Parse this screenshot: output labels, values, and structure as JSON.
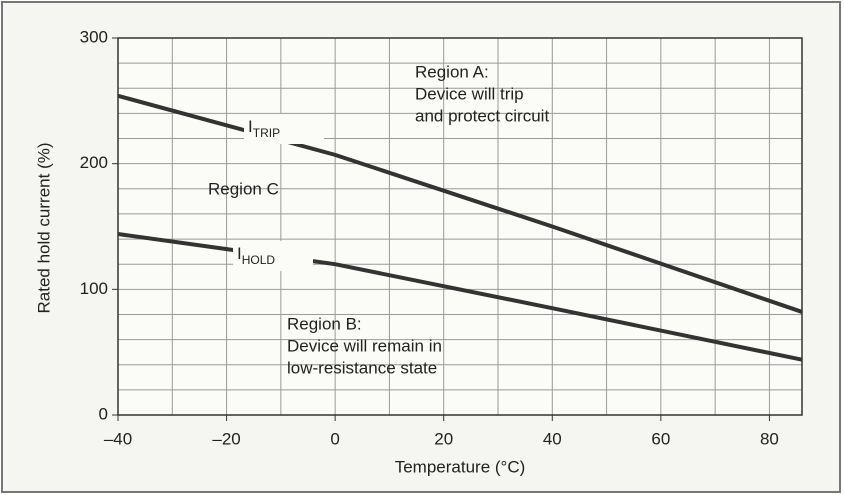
{
  "chart_data": {
    "type": "line",
    "xlabel": "Temperature (°C)",
    "ylabel": "Rated hold current (%)",
    "xlim": [
      -40,
      86
    ],
    "ylim": [
      0,
      300
    ],
    "xticks": [
      {
        "value": -40,
        "label": "–40"
      },
      {
        "value": -20,
        "label": "–20"
      },
      0,
      20,
      40,
      60,
      80
    ],
    "yticks": [
      0,
      100,
      200,
      300
    ],
    "xgrid": [
      -40,
      -30,
      -20,
      -10,
      0,
      10,
      20,
      30,
      40,
      50,
      60,
      70,
      80
    ],
    "ygrid": [
      0,
      20,
      40,
      60,
      80,
      100,
      120,
      140,
      160,
      180,
      200,
      220,
      240,
      260,
      280,
      300
    ],
    "grid": true,
    "series": [
      {
        "name": "I",
        "name_sub": "TRIP",
        "color": "#333333",
        "x": [
          -40,
          0,
          40,
          86
        ],
        "values": [
          254,
          207,
          150,
          82
        ]
      },
      {
        "name": "I",
        "name_sub": "HOLD",
        "color": "#333333",
        "x": [
          -40,
          0,
          40,
          86
        ],
        "values": [
          144,
          120,
          85,
          44
        ]
      }
    ],
    "annotations": [
      [
        "Region A:",
        "Device will trip",
        "and protect circuit"
      ],
      [
        "Region C"
      ],
      [
        "Region B:",
        "Device will remain in",
        "low-resistance state"
      ]
    ]
  }
}
